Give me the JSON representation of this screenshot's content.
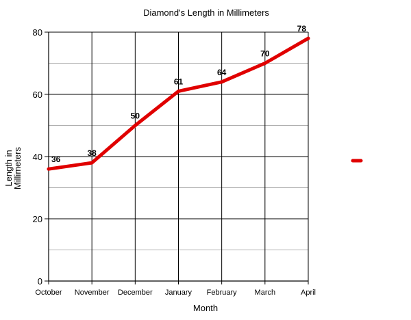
{
  "colors": {
    "line": "#e00000",
    "grid_major": "#000000",
    "grid_minor": "#b0b0b0",
    "text": "#000000"
  },
  "chart_data": {
    "type": "line",
    "title": "Diamond's Length in Millimeters",
    "xlabel": "Month",
    "ylabel": "Length in Millimeters",
    "categories": [
      "October",
      "November",
      "December",
      "January",
      "February",
      "March",
      "April"
    ],
    "series": [
      {
        "values": [
          36,
          38,
          50,
          61,
          64,
          70,
          78
        ]
      }
    ],
    "ylim": [
      0,
      80
    ],
    "yticks": [
      0,
      20,
      40,
      60,
      80
    ],
    "grid": true,
    "data_labels": true,
    "legend": "right"
  }
}
